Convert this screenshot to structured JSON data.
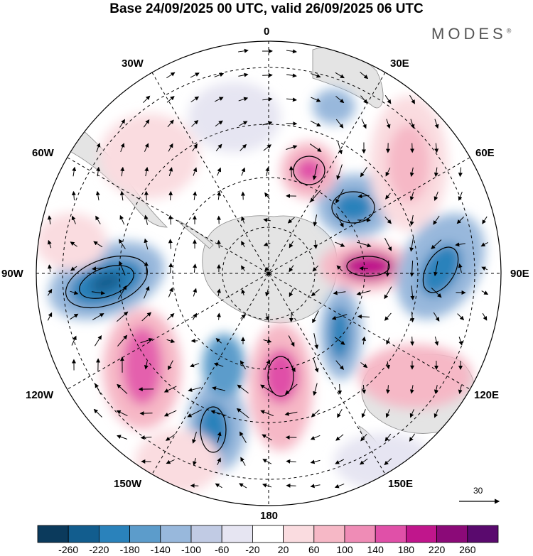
{
  "header": {
    "title": "Base 24/09/2025 00 UTC, valid 26/09/2025 06 UTC",
    "brand": "MODES",
    "brand_mark": "®"
  },
  "map": {
    "projection": "south-polar-stereographic",
    "longitude_labels": {
      "top": "0",
      "lon_30e": "30E",
      "lon_60e": "60E",
      "lon_90e": "90E",
      "lon_120e": "120E",
      "lon_150e": "150E",
      "bottom": "180",
      "lon_150w": "150W",
      "lon_120w": "120W",
      "lon_90w": "90W",
      "lon_60w": "60W",
      "lon_30w": "30W"
    },
    "reference_vector": {
      "value": "30",
      "label": "30"
    }
  },
  "colorbar": {
    "ticks": [
      "-260",
      "-220",
      "-180",
      "-140",
      "-100",
      "-60",
      "-20",
      "20",
      "60",
      "100",
      "140",
      "180",
      "220",
      "260"
    ],
    "colors": [
      "#0b3a5c",
      "#125d8e",
      "#2a82bb",
      "#5c9ccb",
      "#98b8dc",
      "#c1cbe4",
      "#e6e5f2",
      "#ffffff",
      "#fadce0",
      "#f6b8c6",
      "#ef8cb6",
      "#e050a8",
      "#c0168c",
      "#8b0a78",
      "#5a0a6e"
    ]
  }
}
